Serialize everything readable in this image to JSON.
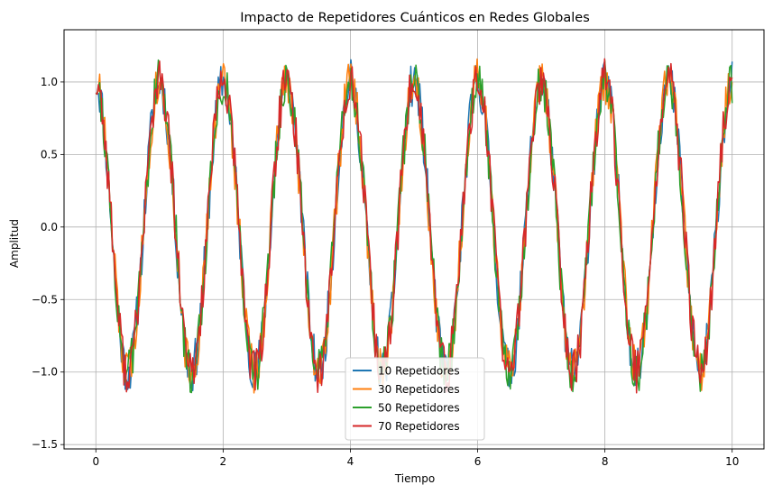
{
  "chart_data": {
    "type": "line",
    "title": "Impacto de Repetidores Cuánticos en Redes Globales",
    "xlabel": "Tiempo",
    "ylabel": "Amplitud",
    "xlim": [
      -0.5,
      10.5
    ],
    "ylim": [
      -1.53,
      1.36
    ],
    "xticks": [
      0,
      2,
      4,
      6,
      8,
      10
    ],
    "xtick_labels": [
      "0",
      "2",
      "4",
      "6",
      "8",
      "10"
    ],
    "yticks": [
      -1.5,
      -1.0,
      -0.5,
      0.0,
      0.5,
      1.0
    ],
    "ytick_labels": [
      "−1.5",
      "−1.0",
      "−0.5",
      "0.0",
      "0.5",
      "1.0"
    ],
    "grid": true,
    "legend_position": "lower-center",
    "signal": {
      "function": "cos",
      "frequency": 1.0,
      "amplitude": 1.0,
      "noise_amplitude": 0.1,
      "x_start": 0,
      "x_end": 10,
      "n_points": 500
    },
    "series": [
      {
        "name": "10 Repetidores",
        "color": "#1f77b4",
        "seed": 11
      },
      {
        "name": "30 Repetidores",
        "color": "#ff7f0e",
        "seed": 33
      },
      {
        "name": "50 Repetidores",
        "color": "#2ca02c",
        "seed": 55
      },
      {
        "name": "70 Repetidores",
        "color": "#d62728",
        "seed": 77
      }
    ]
  }
}
